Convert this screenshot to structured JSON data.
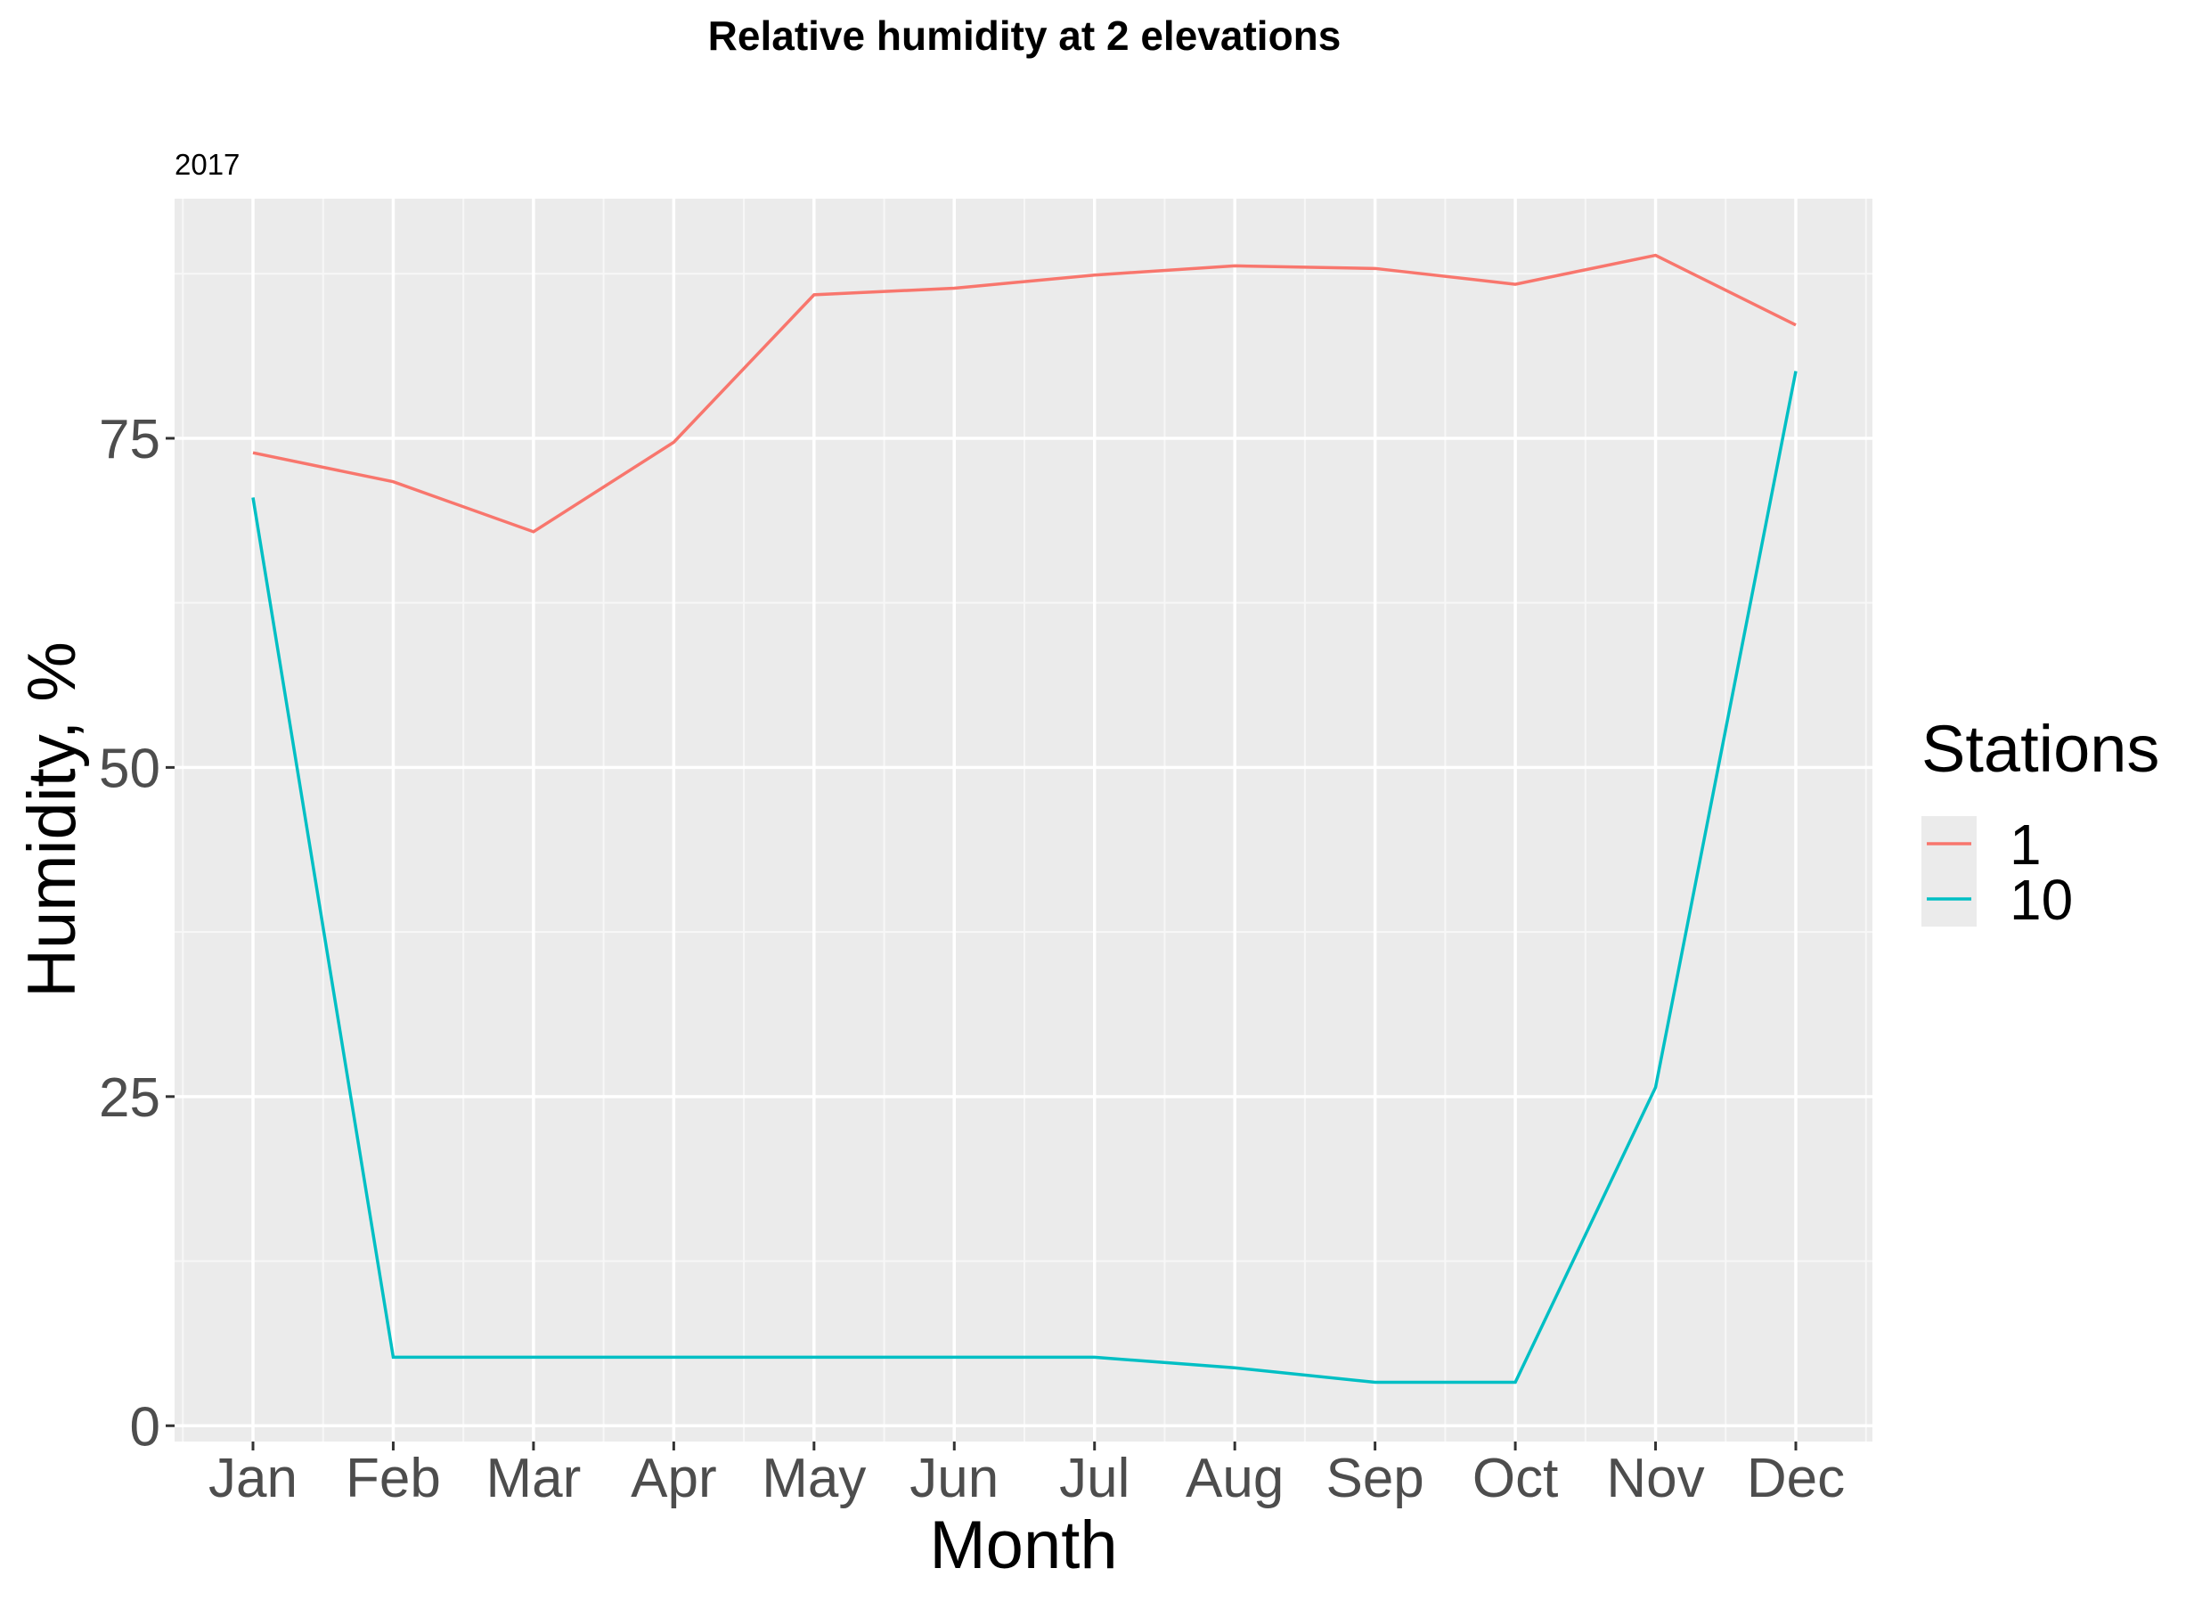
{
  "chart_data": {
    "type": "line",
    "title": "Relative humidity at 2 elevations",
    "subtitle": "2017",
    "xlabel": "Month",
    "ylabel": "Humidity, %",
    "categories": [
      "Jan",
      "Feb",
      "Mar",
      "Apr",
      "May",
      "Jun",
      "Jul",
      "Aug",
      "Sep",
      "Oct",
      "Nov",
      "Dec"
    ],
    "ylim": [
      -1.2,
      93.2
    ],
    "yticks": [
      0,
      25,
      50,
      75
    ],
    "grid": true,
    "legend": {
      "title": "Stations",
      "placement": "right"
    },
    "series": [
      {
        "name": "1",
        "color": "#F8766D",
        "values": [
          73.9,
          71.7,
          67.9,
          74.7,
          85.9,
          86.4,
          87.4,
          88.1,
          87.9,
          86.7,
          88.9,
          83.6
        ]
      },
      {
        "name": "10",
        "color": "#00BFC4",
        "values": [
          70.5,
          5.2,
          5.2,
          5.2,
          5.2,
          5.2,
          5.2,
          4.4,
          3.3,
          3.3,
          25.7,
          80.1
        ]
      }
    ]
  }
}
